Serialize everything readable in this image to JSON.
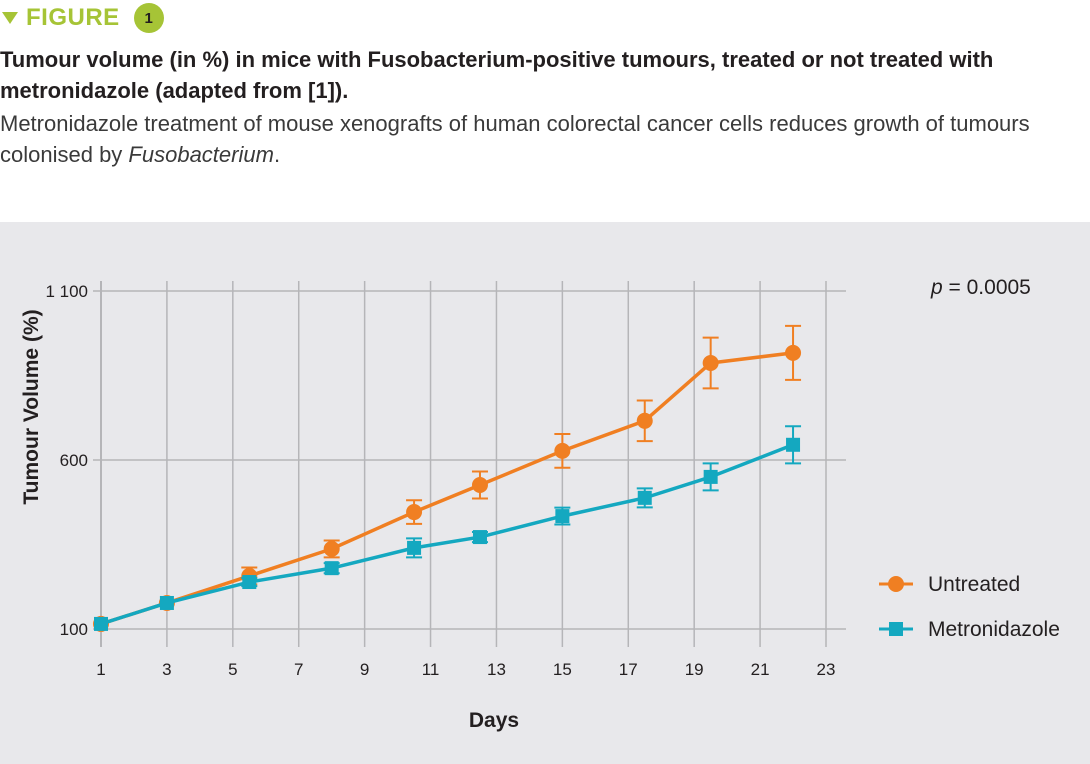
{
  "figure": {
    "label": "FIGURE",
    "number": "1",
    "accent_color": "#a6c436"
  },
  "caption": {
    "title": "Tumour volume (in %) in mice with Fusobacterium-positive tumours, treated or not treated with metronidazole (adapted from [1]).",
    "body_prefix": "Metronidazole treatment of mouse xenografts of human colorectal cancer cells reduces growth of tumours colonised by ",
    "body_italic": "Fusobacterium",
    "body_suffix": "."
  },
  "chart_data": {
    "type": "line",
    "title": "",
    "xlabel": "Days",
    "ylabel": "Tumour Volume (%)",
    "xlim": [
      1,
      23
    ],
    "ylim": [
      100,
      1100
    ],
    "x_ticks": [
      1,
      3,
      5,
      7,
      9,
      11,
      13,
      15,
      17,
      19,
      21,
      23
    ],
    "y_ticks": [
      100,
      600,
      1100
    ],
    "y_tick_labels": [
      "100",
      "600",
      "1 100"
    ],
    "grid": true,
    "legend_position": "bottom-right",
    "annotation": {
      "p_symbol": "p",
      "text": " = 0.0005",
      "position": "top-right"
    },
    "series": [
      {
        "name": "Untreated",
        "color": "#f07f22",
        "marker": "circle",
        "x": [
          1,
          3,
          5.5,
          8,
          10.5,
          12.5,
          15,
          17.5,
          19.5,
          22
        ],
        "y": [
          115,
          177,
          257,
          337,
          446,
          526,
          627,
          716,
          887,
          917
        ],
        "error": [
          0,
          0,
          25,
          25,
          35,
          40,
          50,
          60,
          75,
          80
        ]
      },
      {
        "name": "Metronidazole",
        "color": "#14a8c0",
        "marker": "square",
        "x": [
          1,
          3,
          5.5,
          8,
          10.5,
          12.5,
          15,
          17.5,
          19.5,
          22
        ],
        "y": [
          115,
          177,
          239,
          280,
          340,
          372,
          434,
          488,
          550,
          645
        ],
        "error": [
          0,
          0,
          12,
          15,
          28,
          15,
          25,
          28,
          40,
          55
        ]
      }
    ]
  }
}
